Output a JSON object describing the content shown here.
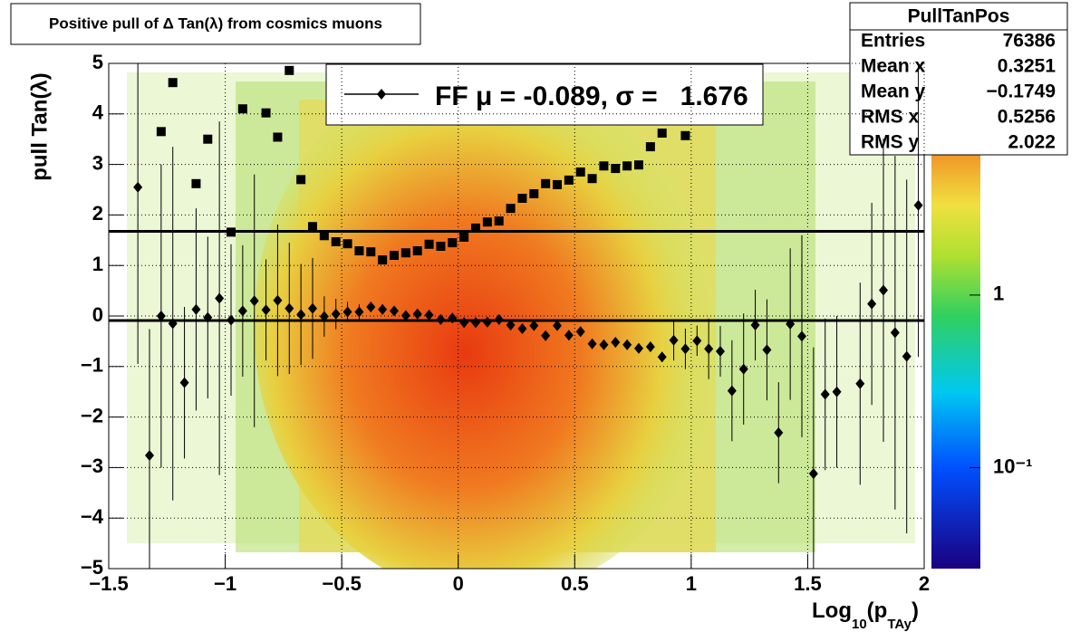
{
  "chart_data": {
    "type": "profile",
    "title": "Positive pull of Δ Tan(λ) from cosmics muons",
    "y_label": "pull Tan(λ)",
    "x_label_parts": [
      "Log",
      "10",
      "(p",
      "TAy",
      ")"
    ],
    "x": [
      -1.375,
      -1.325,
      -1.275,
      -1.225,
      -1.175,
      -1.125,
      -1.075,
      -1.025,
      -0.975,
      -0.925,
      -0.875,
      -0.825,
      -0.775,
      -0.725,
      -0.675,
      -0.625,
      -0.575,
      -0.525,
      -0.475,
      -0.425,
      -0.375,
      -0.325,
      -0.275,
      -0.225,
      -0.175,
      -0.125,
      -0.075,
      -0.025,
      0.025,
      0.075,
      0.125,
      0.175,
      0.225,
      0.275,
      0.325,
      0.375,
      0.425,
      0.475,
      0.525,
      0.575,
      0.625,
      0.675,
      0.725,
      0.775,
      0.825,
      0.875,
      0.925,
      0.975,
      1.025,
      1.075,
      1.125,
      1.175,
      1.225,
      1.275,
      1.325,
      1.375,
      1.425,
      1.475,
      1.525,
      1.575,
      1.625,
      1.675,
      1.725,
      1.775,
      1.825,
      1.875,
      1.925,
      1.975
    ],
    "series": [
      {
        "marker": "diamond",
        "color": "#000000",
        "values": [
          2.55,
          -2.76,
          0.0,
          -0.15,
          -1.32,
          0.13,
          -0.03,
          0.35,
          -0.08,
          0.1,
          0.3,
          0.12,
          0.31,
          0.15,
          0.03,
          0.15,
          -0.01,
          0.04,
          0.08,
          0.08,
          0.18,
          0.13,
          0.1,
          0.01,
          0.04,
          0.02,
          -0.07,
          -0.04,
          -0.13,
          -0.13,
          -0.12,
          -0.07,
          -0.18,
          -0.25,
          -0.19,
          -0.39,
          -0.19,
          -0.38,
          -0.31,
          -0.55,
          -0.57,
          -0.52,
          -0.57,
          -0.64,
          -0.61,
          -0.81,
          -0.48,
          -0.65,
          -0.49,
          -0.65,
          -0.7,
          -1.48,
          -1.05,
          -0.18,
          -0.67,
          -2.31,
          -0.16,
          -0.4,
          -3.12,
          -1.55,
          -1.5,
          null,
          -1.34,
          0.24,
          0.51,
          -0.33,
          -0.8,
          2.19
        ],
        "errors": [
          3.5,
          2.5,
          3.0,
          3.5,
          1.5,
          2.0,
          1.6,
          3.5,
          1.5,
          1.3,
          2.5,
          1.0,
          1.5,
          1.3,
          1.0,
          1.0,
          0.4,
          0.3,
          0.2,
          0.15,
          0.1,
          0.1,
          0.1,
          0.1,
          0.1,
          0.1,
          0.1,
          0.1,
          0.1,
          0.1,
          0.1,
          0.1,
          0.1,
          0.1,
          0.1,
          0.1,
          0.1,
          0.1,
          0.1,
          0.1,
          0.1,
          0.1,
          0.1,
          0.1,
          0.1,
          0.1,
          0.4,
          0.4,
          0.3,
          0.6,
          0.5,
          1.0,
          1.1,
          0.7,
          1.0,
          1.0,
          1.5,
          2.0,
          2.5,
          1.5,
          1.5,
          null,
          2.0,
          2.0,
          3.0,
          3.5,
          3.5,
          3.0
        ]
      },
      {
        "marker": "square",
        "color": "#000000",
        "values": [
          null,
          null,
          3.65,
          4.62,
          null,
          2.62,
          3.5,
          null,
          1.66,
          4.1,
          null,
          4.02,
          3.54,
          4.86,
          2.7,
          1.77,
          1.59,
          1.47,
          1.43,
          1.29,
          1.27,
          1.11,
          1.2,
          1.25,
          1.29,
          1.42,
          1.38,
          1.45,
          1.56,
          1.74,
          1.86,
          1.88,
          2.13,
          2.33,
          2.42,
          2.62,
          2.6,
          2.69,
          2.85,
          2.72,
          2.97,
          2.92,
          2.97,
          2.99,
          3.35,
          3.62,
          null,
          3.57,
          null,
          null,
          null,
          null,
          null,
          null,
          null,
          null,
          null,
          null,
          null,
          null,
          null,
          null,
          null,
          null,
          null,
          null,
          null,
          null
        ]
      }
    ],
    "fit": {
      "mean": -0.089,
      "sigma": 1.676
    },
    "legend_label": "FF μ = -0.089, σ =   1.676",
    "xlim": [
      -1.5,
      2
    ],
    "xticks": [
      {
        "value": -1.5,
        "label": "−1.5"
      },
      {
        "value": -1,
        "label": "−1"
      },
      {
        "value": -0.5,
        "label": "−0.5"
      },
      0,
      0.5,
      1,
      1.5,
      2
    ],
    "ylim": [
      -5,
      5
    ],
    "yticks": [
      {
        "value": -5,
        "label": "−5"
      },
      {
        "value": -4,
        "label": "−4"
      },
      {
        "value": -3,
        "label": "−3"
      },
      {
        "value": -2,
        "label": "−2"
      },
      {
        "value": -1,
        "label": "−1"
      },
      0,
      1,
      2,
      3,
      4,
      5
    ],
    "grid": true,
    "zlim": [
      0.026,
      22
    ],
    "zscale": "log",
    "zticks": [
      {
        "value": 0.1,
        "label": "10⁻¹"
      },
      1
    ],
    "stats": {
      "title": "PullTanPos",
      "rows": [
        [
          "Entries",
          76386
        ],
        [
          "Mean x",
          0.3251
        ],
        [
          "Mean y",
          "−0.1749"
        ],
        [
          "RMS x",
          0.5256
        ],
        [
          "RMS y",
          2.022
        ]
      ]
    }
  }
}
